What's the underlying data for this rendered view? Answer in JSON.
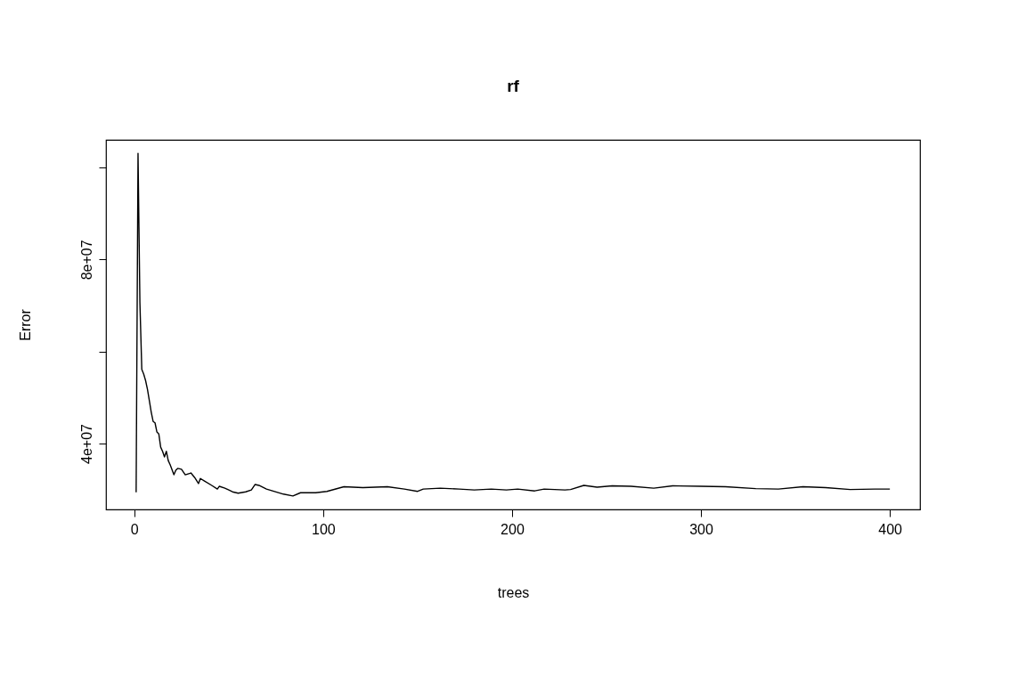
{
  "chart_data": {
    "type": "line",
    "title": "rf",
    "xlabel": "trees",
    "ylabel": "Error",
    "xlim": [
      -14.96,
      415.96
    ],
    "ylim": [
      25670000,
      106020000
    ],
    "xticks": [
      0,
      100,
      200,
      300,
      400
    ],
    "yticks": [
      {
        "value": 40000000,
        "label": "4e+07"
      },
      {
        "value": 60000000,
        "label": null
      },
      {
        "value": 80000000,
        "label": "8e+07"
      },
      {
        "value": 100000000,
        "label": null
      }
    ],
    "grid": false,
    "marker": "none",
    "line_style": "solid",
    "series": [
      {
        "color": "#000000",
        "x": [
          1,
          2,
          3,
          4,
          5,
          6,
          7,
          8,
          9,
          10,
          11,
          12,
          13,
          14,
          15,
          16,
          17,
          18,
          19,
          21,
          22,
          23,
          25,
          27,
          30,
          32,
          34,
          35,
          37,
          41,
          44,
          45,
          48,
          52,
          55,
          59,
          62,
          64,
          66,
          70,
          79,
          84,
          88,
          96,
          102,
          111,
          121,
          134,
          143,
          150,
          153,
          162,
          172,
          180,
          189,
          197,
          203,
          212,
          217,
          228,
          231,
          238,
          245,
          253,
          263,
          275,
          285,
          300,
          313,
          329,
          341,
          354,
          366,
          379,
          392,
          400
        ],
        "values": [
          29400000,
          103100000,
          70600000,
          56100000,
          55100000,
          53700000,
          51800000,
          49300000,
          46800000,
          44800000,
          44500000,
          42500000,
          42100000,
          39200000,
          38300000,
          37100000,
          38300000,
          36300000,
          35400000,
          33200000,
          34200000,
          34600000,
          34400000,
          33200000,
          33600000,
          32600000,
          31300000,
          32400000,
          31900000,
          30900000,
          30100000,
          30700000,
          30300000,
          29500000,
          29200000,
          29500000,
          29900000,
          31100000,
          30900000,
          30100000,
          29000000,
          28600000,
          29300000,
          29300000,
          29600000,
          30600000,
          30400000,
          30600000,
          30100000,
          29600000,
          30100000,
          30300000,
          30100000,
          29900000,
          30100000,
          29900000,
          30100000,
          29700000,
          30100000,
          29900000,
          30000000,
          30900000,
          30500000,
          30800000,
          30700000,
          30300000,
          30800000,
          30700000,
          30600000,
          30200000,
          30100000,
          30600000,
          30400000,
          30000000,
          30100000,
          30100000
        ]
      }
    ]
  }
}
